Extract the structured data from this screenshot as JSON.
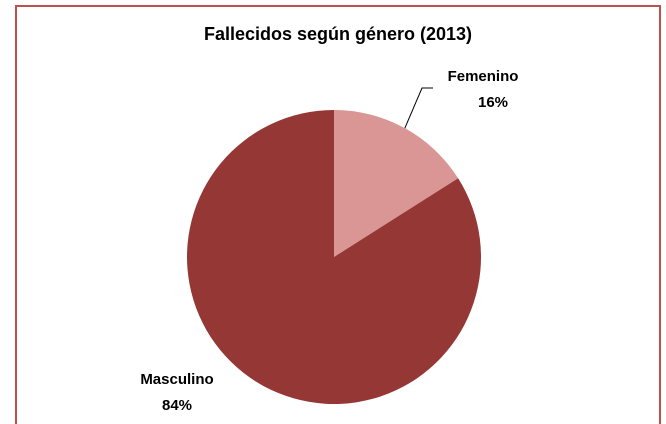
{
  "chart_data": {
    "type": "pie",
    "title": "Fallecidos según género (2013)",
    "categories": [
      "Femenino",
      "Masculino"
    ],
    "values": [
      16,
      84
    ],
    "value_labels": [
      "16%",
      "84%"
    ],
    "colors": [
      "#d99694",
      "#953735"
    ]
  }
}
